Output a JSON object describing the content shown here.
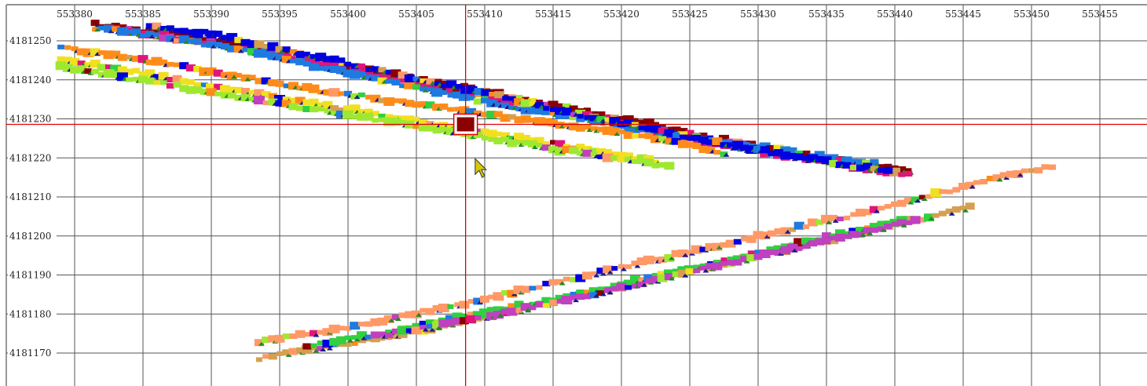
{
  "chart_data": {
    "type": "scatter",
    "title": "",
    "xlabel": "",
    "ylabel": "",
    "grid": true,
    "legend": "none",
    "xlim": [
      553377.5,
      553459
    ],
    "ylim": [
      4181162,
      4181259
    ],
    "x_ticks": [
      553380,
      553385,
      553390,
      553395,
      553400,
      553405,
      553410,
      553415,
      553420,
      553425,
      553430,
      553435,
      553440,
      553445,
      553450,
      553455
    ],
    "y_ticks": [
      4181250,
      4181240,
      4181230,
      4181220,
      4181210,
      4181200,
      4181190,
      4181180,
      4181170
    ],
    "x_tick_labels": [
      "553380",
      "553385",
      "553390",
      "553395",
      "553400",
      "553405",
      "553410",
      "553415",
      "553420",
      "553425",
      "553430",
      "553435",
      "553440",
      "553445",
      "553450",
      "553455"
    ],
    "y_tick_labels": [
      "4181250",
      "4181240",
      "4181230",
      "4181220",
      "4181210",
      "4181200",
      "4181190",
      "4181180",
      "4181170"
    ],
    "crosshair": {
      "x": 553408.6,
      "y": 4181228.6
    },
    "selected_point": {
      "x": 553408.6,
      "y": 4181228.6,
      "color": "#8b0000"
    },
    "palette": [
      "#8b0000",
      "#e0157a",
      "#1f7ae0",
      "#0000e0",
      "#ff8c1a",
      "#f0e020",
      "#9ee832",
      "#ff9966",
      "#d4a050",
      "#30d040",
      "#c040c0"
    ],
    "colors": {
      "grid": "#555555",
      "crosshair": "#e00000",
      "background": "#ffffff",
      "cursor": "#d8c800"
    },
    "series": [
      {
        "points": [
          [
            553381.5,
            4181254
          ],
          [
            553388,
            4181251
          ],
          [
            553396,
            4181246.5
          ],
          [
            553404,
            4181240.5
          ],
          [
            553409,
            4181237.5
          ],
          [
            553416,
            4181232.5
          ],
          [
            553420,
            4181230
          ],
          [
            553425,
            4181226
          ],
          [
            553430,
            4181222.5
          ],
          [
            553435,
            4181219.5
          ],
          [
            553439,
            4181217.5
          ],
          [
            553441.5,
            4181216
          ]
        ]
      },
      {
        "points": [
          [
            553383,
            4181252.5
          ],
          [
            553390,
            4181249
          ],
          [
            553398,
            4181244
          ],
          [
            553406,
            4181238
          ],
          [
            553412,
            4181234
          ],
          [
            553418,
            4181230
          ],
          [
            553423,
            4181226
          ],
          [
            553428,
            4181222.5
          ],
          [
            553433,
            4181219.5
          ],
          [
            553437,
            4181217.5
          ],
          [
            553441.5,
            4181215
          ]
        ]
      },
      {
        "points": [
          [
            553381.5,
            4181253
          ],
          [
            553386,
            4181251
          ],
          [
            553392,
            4181247.5
          ],
          [
            553398,
            4181243
          ],
          [
            553404,
            4181238.5
          ],
          [
            553410,
            4181234
          ],
          [
            553416,
            4181230.5
          ],
          [
            553420,
            4181228
          ],
          [
            553425,
            4181225
          ],
          [
            553430,
            4181222.5
          ],
          [
            553435,
            4181220
          ],
          [
            553439,
            4181218
          ]
        ]
      },
      {
        "points": [
          [
            553385.5,
            4181253.5
          ],
          [
            553390,
            4181251.5
          ],
          [
            553395,
            4181247.5
          ],
          [
            553400,
            4181244
          ],
          [
            553405,
            4181240
          ],
          [
            553408.6,
            4181237.5
          ],
          [
            553413,
            4181234
          ],
          [
            553418,
            4181230
          ],
          [
            553423,
            4181226.5
          ],
          [
            553428,
            4181223
          ],
          [
            553433,
            4181220
          ],
          [
            553437,
            4181217.5
          ],
          [
            553440,
            4181216.5
          ]
        ]
      },
      {
        "points": [
          [
            553379,
            4181248
          ],
          [
            553383,
            4181246
          ],
          [
            553388,
            4181243
          ],
          [
            553393,
            4181240
          ],
          [
            553398,
            4181237
          ],
          [
            553403,
            4181234.5
          ],
          [
            553408,
            4181232
          ],
          [
            553413,
            4181229.5
          ],
          [
            553418,
            4181227
          ],
          [
            553422,
            4181225
          ],
          [
            553425,
            4181223
          ],
          [
            553428,
            4181220.5
          ]
        ]
      },
      {
        "points": [
          [
            553379,
            4181245
          ],
          [
            553384,
            4181242
          ],
          [
            553390,
            4181238
          ],
          [
            553396,
            4181234.5
          ],
          [
            553402,
            4181231
          ],
          [
            553408,
            4181227.5
          ],
          [
            553414,
            4181224
          ],
          [
            553419,
            4181221
          ],
          [
            553423,
            4181218.5
          ]
        ]
      },
      {
        "points": [
          [
            553379,
            4181243
          ],
          [
            553385,
            4181239.5
          ],
          [
            553391,
            4181236
          ],
          [
            553397,
            4181232.5
          ],
          [
            553403,
            4181229
          ],
          [
            553409,
            4181225.5
          ],
          [
            553415,
            4181222
          ],
          [
            553420,
            4181219.5
          ],
          [
            553424,
            4181217
          ]
        ]
      },
      {
        "points": [
          [
            553393.5,
            4181172.5
          ],
          [
            553398,
            4181175
          ],
          [
            553403,
            4181178.5
          ],
          [
            553408,
            4181182
          ],
          [
            553413,
            4181186
          ],
          [
            553418,
            4181190
          ],
          [
            553423,
            4181194
          ],
          [
            553428,
            4181198
          ],
          [
            553433,
            4181202
          ],
          [
            553438,
            4181206
          ],
          [
            553443,
            4181210.5
          ],
          [
            553448,
            4181215
          ],
          [
            553452,
            4181218
          ]
        ]
      },
      {
        "points": [
          [
            553393.5,
            4181168.5
          ],
          [
            553398,
            4181171
          ],
          [
            553403,
            4181174
          ],
          [
            553408,
            4181177.5
          ],
          [
            553413,
            4181181
          ],
          [
            553418,
            4181185
          ],
          [
            553423,
            4181189
          ],
          [
            553428,
            4181193
          ],
          [
            553433,
            4181197
          ],
          [
            553438,
            4181201
          ],
          [
            553443,
            4181205
          ],
          [
            553446,
            4181207.5
          ]
        ]
      },
      {
        "points": [
          [
            553397,
            4181171.5
          ],
          [
            553402,
            4181174.5
          ],
          [
            553407,
            4181178
          ],
          [
            553412,
            4181181.5
          ],
          [
            553417,
            4181185
          ],
          [
            553422,
            4181189
          ],
          [
            553427,
            4181193
          ],
          [
            553432,
            4181197
          ],
          [
            553437,
            4181201
          ],
          [
            553441,
            4181204
          ]
        ]
      },
      {
        "points": [
          [
            553402,
            4181174
          ],
          [
            553407,
            4181177
          ],
          [
            553412,
            4181180.5
          ],
          [
            553417,
            4181184
          ],
          [
            553422,
            4181188
          ],
          [
            553427,
            4181192
          ],
          [
            553432,
            4181196
          ],
          [
            553437,
            4181200
          ],
          [
            553442,
            4181204
          ]
        ]
      }
    ]
  }
}
